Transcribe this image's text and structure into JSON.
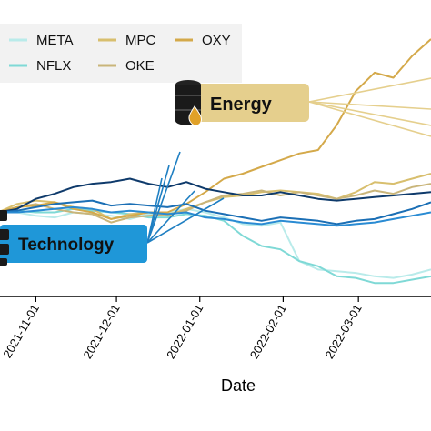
{
  "chart_data": {
    "type": "line",
    "xlabel": "Date",
    "ylabel": "",
    "title": "",
    "grid": false,
    "legend_placement": "top-left",
    "x_ticks": [
      "2021-11-01",
      "2021-12-01",
      "2022-01-01",
      "2022-02-01",
      "2022-03-01"
    ],
    "x_range": [
      "2021-10-18",
      "2022-03-28"
    ],
    "y_range": [
      0.5,
      2.1
    ],
    "dates": [
      "2021-10-18",
      "2021-10-25",
      "2021-11-01",
      "2021-11-08",
      "2021-11-15",
      "2021-11-22",
      "2021-11-29",
      "2021-12-06",
      "2021-12-13",
      "2021-12-20",
      "2021-12-27",
      "2022-01-03",
      "2022-01-10",
      "2022-01-17",
      "2022-01-24",
      "2022-01-31",
      "2022-02-07",
      "2022-02-14",
      "2022-02-21",
      "2022-02-28",
      "2022-03-07",
      "2022-03-14",
      "2022-03-21",
      "2022-03-28"
    ],
    "series": [
      {
        "name": "META",
        "color": "#b9ebea",
        "group": "Technology",
        "values": [
          1.0,
          1.0,
          0.98,
          0.97,
          1.0,
          0.99,
          0.98,
          0.96,
          0.99,
          1.0,
          1.02,
          1.0,
          0.97,
          0.93,
          0.92,
          0.94,
          0.71,
          0.66,
          0.65,
          0.64,
          0.62,
          0.61,
          0.63,
          0.66
        ]
      },
      {
        "name": "NFLX",
        "color": "#7fd9d6",
        "group": "Technology",
        "values": [
          1.0,
          1.01,
          1.0,
          1.0,
          1.02,
          1.01,
          1.0,
          0.99,
          0.97,
          0.97,
          0.99,
          0.98,
          0.95,
          0.86,
          0.8,
          0.78,
          0.71,
          0.68,
          0.62,
          0.61,
          0.58,
          0.58,
          0.6,
          0.62
        ]
      },
      {
        "name": "MPC",
        "color": "#d8bf6e",
        "group": "Energy",
        "values": [
          1.0,
          1.05,
          1.07,
          1.06,
          1.03,
          1.02,
          0.96,
          0.99,
          1.0,
          0.98,
          1.02,
          1.06,
          1.09,
          1.1,
          1.12,
          1.13,
          1.12,
          1.11,
          1.08,
          1.12,
          1.18,
          1.17,
          1.2,
          1.23
        ]
      },
      {
        "name": "OKE",
        "color": "#c9b57a",
        "group": "Energy",
        "values": [
          1.0,
          1.03,
          1.05,
          1.02,
          1.0,
          0.99,
          0.94,
          0.97,
          0.98,
          0.99,
          1.01,
          1.06,
          1.1,
          1.11,
          1.13,
          1.1,
          1.12,
          1.1,
          1.08,
          1.1,
          1.13,
          1.11,
          1.15,
          1.17
        ]
      },
      {
        "name": "OXY",
        "color": "#d4a94a",
        "group": "Energy",
        "values": [
          1.0,
          1.03,
          1.04,
          1.06,
          1.02,
          1.0,
          0.96,
          0.98,
          1.0,
          1.0,
          1.05,
          1.12,
          1.2,
          1.23,
          1.27,
          1.31,
          1.35,
          1.37,
          1.52,
          1.72,
          1.83,
          1.8,
          1.93,
          2.03
        ]
      },
      {
        "name": "",
        "color": "#0e3a6b",
        "group": "Technology",
        "values": [
          1.0,
          1.02,
          1.08,
          1.11,
          1.15,
          1.17,
          1.18,
          1.2,
          1.17,
          1.15,
          1.18,
          1.14,
          1.12,
          1.1,
          1.1,
          1.12,
          1.1,
          1.08,
          1.07,
          1.08,
          1.09,
          1.1,
          1.11,
          1.12
        ]
      },
      {
        "name": "",
        "color": "#1b6fb5",
        "group": "Technology",
        "values": [
          1.0,
          1.01,
          1.03,
          1.05,
          1.06,
          1.07,
          1.04,
          1.05,
          1.04,
          1.03,
          1.05,
          1.01,
          0.99,
          0.97,
          0.95,
          0.97,
          0.96,
          0.95,
          0.93,
          0.95,
          0.96,
          0.99,
          1.02,
          1.06
        ]
      },
      {
        "name": "",
        "color": "#2a8bd3",
        "group": "Technology",
        "values": [
          1.0,
          1.0,
          1.01,
          1.02,
          1.03,
          1.02,
          1.0,
          1.01,
          1.0,
          0.99,
          1.0,
          0.97,
          0.96,
          0.94,
          0.93,
          0.95,
          0.94,
          0.93,
          0.92,
          0.93,
          0.94,
          0.96,
          0.98,
          1.0
        ]
      }
    ],
    "legend": [
      {
        "label": "META",
        "color": "#b9ebea"
      },
      {
        "label": "NFLX",
        "color": "#7fd9d6"
      },
      {
        "label": "MPC",
        "color": "#d8bf6e"
      },
      {
        "label": "OKE",
        "color": "#c9b57a"
      },
      {
        "label": "OXY",
        "color": "#d4a94a"
      }
    ],
    "annotations": [
      {
        "label": "Energy",
        "box_color": "#e5cf8d",
        "icon": "oil-barrel-icon"
      },
      {
        "label": "Technology",
        "box_color": "#1f97d8",
        "icon": "server-icon"
      }
    ]
  }
}
